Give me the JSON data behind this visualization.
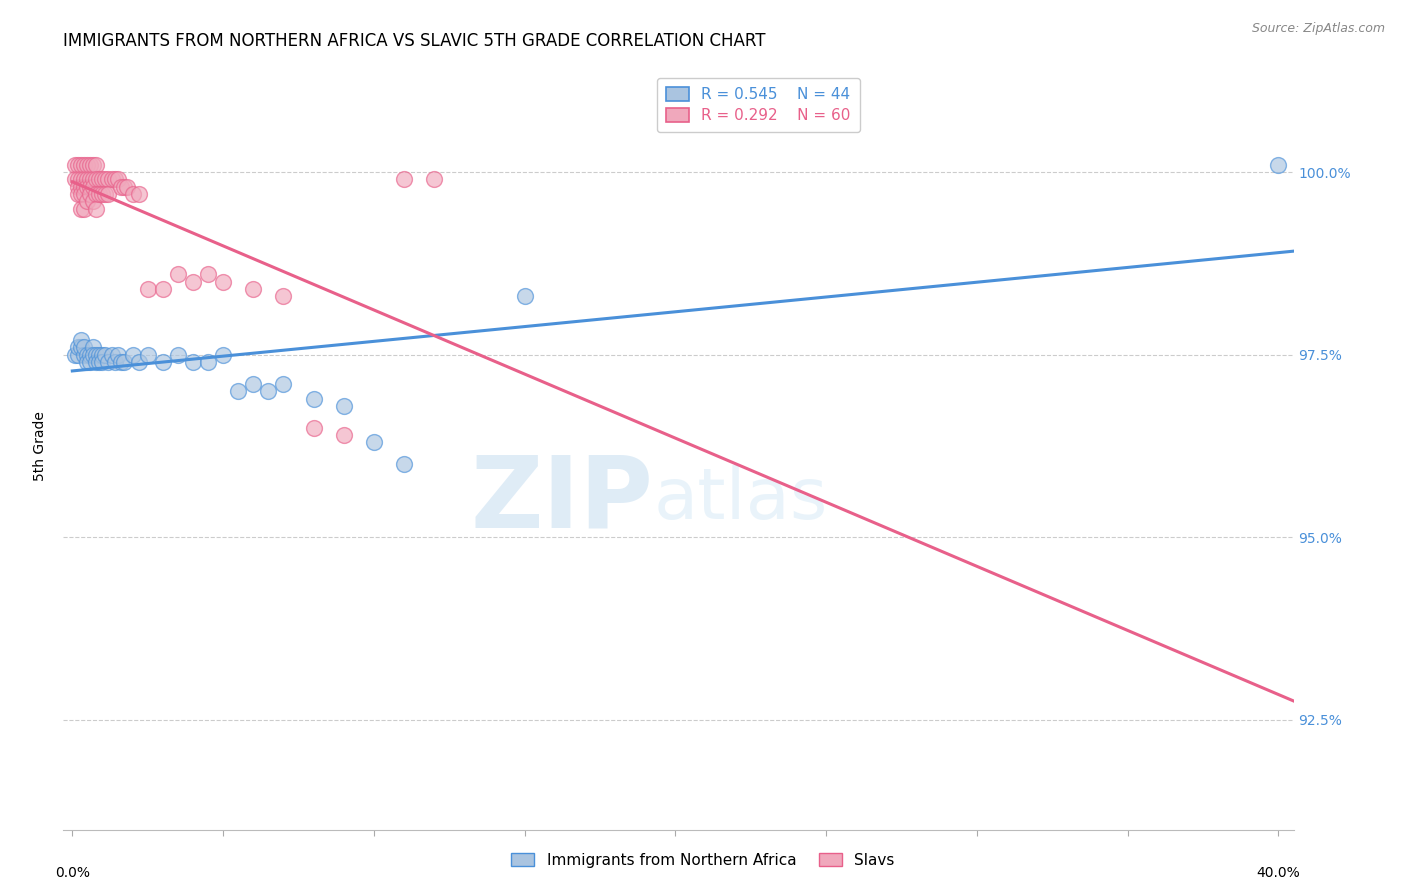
{
  "title": "IMMIGRANTS FROM NORTHERN AFRICA VS SLAVIC 5TH GRADE CORRELATION CHART",
  "source": "Source: ZipAtlas.com",
  "ylabel": "5th Grade",
  "ylabel_right_ticks": [
    "100.0%",
    "97.5%",
    "95.0%",
    "92.5%"
  ],
  "ylabel_right_vals": [
    1.0,
    0.975,
    0.95,
    0.925
  ],
  "ymin": 0.91,
  "ymax": 1.015,
  "xmin": -0.003,
  "xmax": 0.405,
  "legend_blue_r": "R = 0.545",
  "legend_blue_n": "N = 44",
  "legend_pink_r": "R = 0.292",
  "legend_pink_n": "N = 60",
  "blue_color": "#aac4e0",
  "pink_color": "#f0a8bc",
  "blue_line_color": "#4a90d9",
  "pink_line_color": "#e8608a",
  "blue_scatter": [
    [
      0.001,
      0.975
    ],
    [
      0.002,
      0.975
    ],
    [
      0.002,
      0.976
    ],
    [
      0.003,
      0.976
    ],
    [
      0.003,
      0.977
    ],
    [
      0.004,
      0.975
    ],
    [
      0.004,
      0.976
    ],
    [
      0.005,
      0.975
    ],
    [
      0.005,
      0.974
    ],
    [
      0.006,
      0.975
    ],
    [
      0.006,
      0.974
    ],
    [
      0.007,
      0.976
    ],
    [
      0.007,
      0.975
    ],
    [
      0.008,
      0.975
    ],
    [
      0.008,
      0.974
    ],
    [
      0.009,
      0.975
    ],
    [
      0.009,
      0.974
    ],
    [
      0.01,
      0.975
    ],
    [
      0.01,
      0.974
    ],
    [
      0.011,
      0.975
    ],
    [
      0.012,
      0.974
    ],
    [
      0.013,
      0.975
    ],
    [
      0.014,
      0.974
    ],
    [
      0.015,
      0.975
    ],
    [
      0.016,
      0.974
    ],
    [
      0.017,
      0.974
    ],
    [
      0.02,
      0.975
    ],
    [
      0.022,
      0.974
    ],
    [
      0.025,
      0.975
    ],
    [
      0.03,
      0.974
    ],
    [
      0.035,
      0.975
    ],
    [
      0.04,
      0.974
    ],
    [
      0.045,
      0.974
    ],
    [
      0.05,
      0.975
    ],
    [
      0.055,
      0.97
    ],
    [
      0.06,
      0.971
    ],
    [
      0.065,
      0.97
    ],
    [
      0.07,
      0.971
    ],
    [
      0.08,
      0.969
    ],
    [
      0.09,
      0.968
    ],
    [
      0.1,
      0.963
    ],
    [
      0.11,
      0.96
    ],
    [
      0.15,
      0.983
    ],
    [
      0.4,
      1.001
    ]
  ],
  "pink_scatter": [
    [
      0.001,
      1.001
    ],
    [
      0.001,
      0.999
    ],
    [
      0.002,
      1.001
    ],
    [
      0.002,
      0.999
    ],
    [
      0.002,
      0.998
    ],
    [
      0.002,
      0.997
    ],
    [
      0.003,
      1.001
    ],
    [
      0.003,
      0.999
    ],
    [
      0.003,
      0.998
    ],
    [
      0.003,
      0.997
    ],
    [
      0.003,
      0.995
    ],
    [
      0.004,
      1.001
    ],
    [
      0.004,
      0.999
    ],
    [
      0.004,
      0.998
    ],
    [
      0.004,
      0.997
    ],
    [
      0.004,
      0.995
    ],
    [
      0.005,
      1.001
    ],
    [
      0.005,
      0.999
    ],
    [
      0.005,
      0.998
    ],
    [
      0.005,
      0.996
    ],
    [
      0.006,
      1.001
    ],
    [
      0.006,
      0.999
    ],
    [
      0.006,
      0.998
    ],
    [
      0.006,
      0.997
    ],
    [
      0.007,
      1.001
    ],
    [
      0.007,
      0.999
    ],
    [
      0.007,
      0.998
    ],
    [
      0.007,
      0.996
    ],
    [
      0.008,
      1.001
    ],
    [
      0.008,
      0.999
    ],
    [
      0.008,
      0.997
    ],
    [
      0.008,
      0.995
    ],
    [
      0.009,
      0.999
    ],
    [
      0.009,
      0.997
    ],
    [
      0.01,
      0.999
    ],
    [
      0.01,
      0.997
    ],
    [
      0.011,
      0.999
    ],
    [
      0.011,
      0.997
    ],
    [
      0.012,
      0.999
    ],
    [
      0.012,
      0.997
    ],
    [
      0.013,
      0.999
    ],
    [
      0.014,
      0.999
    ],
    [
      0.015,
      0.999
    ],
    [
      0.016,
      0.998
    ],
    [
      0.017,
      0.998
    ],
    [
      0.018,
      0.998
    ],
    [
      0.02,
      0.997
    ],
    [
      0.022,
      0.997
    ],
    [
      0.025,
      0.984
    ],
    [
      0.03,
      0.984
    ],
    [
      0.035,
      0.986
    ],
    [
      0.04,
      0.985
    ],
    [
      0.045,
      0.986
    ],
    [
      0.05,
      0.985
    ],
    [
      0.06,
      0.984
    ],
    [
      0.07,
      0.983
    ],
    [
      0.08,
      0.965
    ],
    [
      0.09,
      0.964
    ],
    [
      0.11,
      0.999
    ],
    [
      0.12,
      0.999
    ]
  ],
  "background_color": "#ffffff",
  "grid_color": "#cccccc",
  "title_fontsize": 12,
  "axis_label_fontsize": 10,
  "tick_fontsize": 10,
  "source_fontsize": 9,
  "legend_fontsize": 11
}
